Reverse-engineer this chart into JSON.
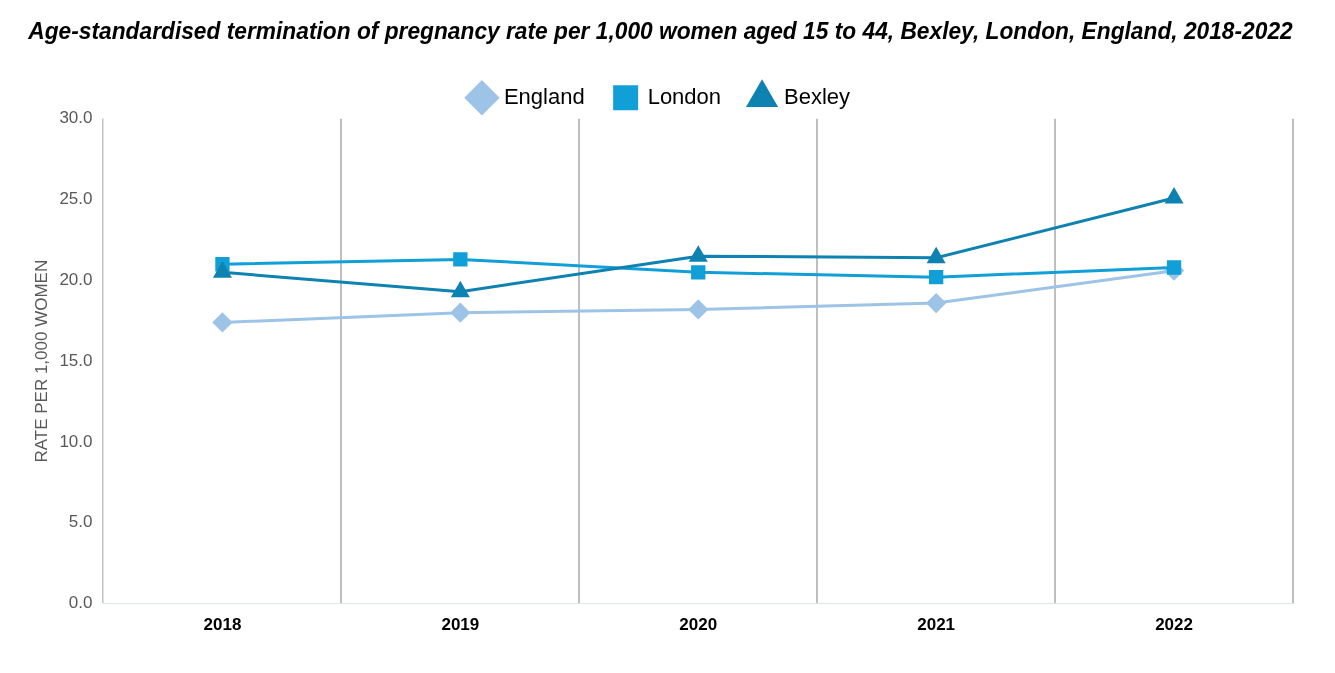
{
  "chart_data": {
    "type": "line",
    "title": "Age-standardised termination of pregnancy rate per 1,000 women aged 15 to 44, Bexley, London, England, 2018-2022",
    "ylabel": "RATE PER 1,000 WOMEN",
    "categories": [
      "2018",
      "2019",
      "2020",
      "2021",
      "2022"
    ],
    "series": [
      {
        "name": "England",
        "color": "#9dc3e6",
        "marker": "diamond",
        "values": [
          17.4,
          18.0,
          18.2,
          18.6,
          20.6
        ]
      },
      {
        "name": "London",
        "color": "#119fd8",
        "marker": "square",
        "values": [
          21.0,
          21.3,
          20.5,
          20.2,
          20.8
        ]
      },
      {
        "name": "Bexley",
        "color": "#0e82b0",
        "marker": "triangle",
        "values": [
          20.5,
          19.3,
          21.5,
          21.4,
          25.1
        ]
      }
    ],
    "ylim": [
      0,
      30
    ],
    "yticks": [
      {
        "value": 0,
        "label": "0.0"
      },
      {
        "value": 5,
        "label": "5.0"
      },
      {
        "value": 10,
        "label": "10.0"
      },
      {
        "value": 15,
        "label": "15.0"
      },
      {
        "value": 20,
        "label": "20.0"
      },
      {
        "value": 25,
        "label": "25.0"
      },
      {
        "value": 30,
        "label": "30.0"
      }
    ],
    "grid": "x",
    "legend": "top"
  }
}
